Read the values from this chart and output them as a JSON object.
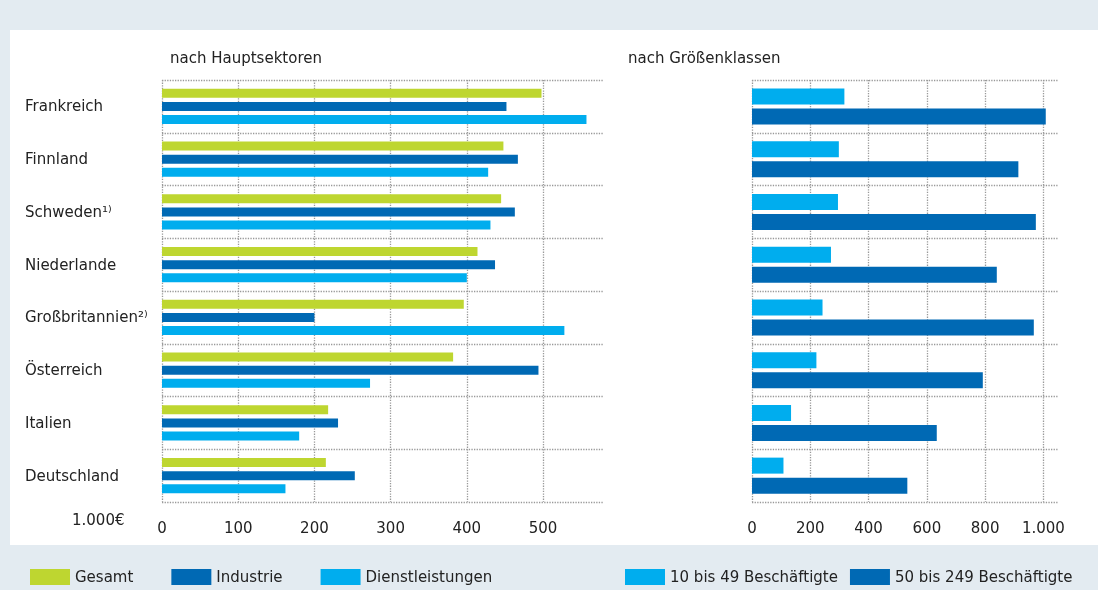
{
  "chart_data": [
    {
      "type": "bar",
      "orientation": "horizontal",
      "title": "nach Hauptsektoren",
      "categories": [
        "Frankreich",
        "Finnland",
        "Schweden¹⁾",
        "Niederlande",
        "Großbritannien²⁾",
        "Österreich",
        "Italien",
        "Deutschland"
      ],
      "series": [
        {
          "name": "Gesamt",
          "color": "#bed630",
          "values": [
            498,
            448,
            445,
            414,
            396,
            382,
            218,
            215
          ]
        },
        {
          "name": "Industrie",
          "color": "#0069b4",
          "values": [
            452,
            467,
            463,
            437,
            200,
            494,
            231,
            253
          ]
        },
        {
          "name": "Dienstleistungen",
          "color": "#00adee",
          "values": [
            557,
            428,
            431,
            400,
            528,
            273,
            180,
            162
          ]
        }
      ],
      "xlim": [
        0,
        580
      ],
      "xticks": [
        0,
        100,
        200,
        300,
        400,
        500
      ],
      "grid": true,
      "legend": "bottom left",
      "annotations": [
        "1.000€"
      ]
    },
    {
      "type": "bar",
      "orientation": "horizontal",
      "title": "nach Größenklassen",
      "categories": [
        null,
        null,
        null,
        null,
        null,
        null,
        null,
        null
      ],
      "series": [
        {
          "name": "10 bis 49 Beschäftigte",
          "color": "#00adee",
          "values": [
            317,
            298,
            295,
            271,
            242,
            221,
            134,
            108
          ]
        },
        {
          "name": "50 bis 249 Beschäftigte",
          "color": "#0069b4",
          "values": [
            1008,
            914,
            974,
            840,
            967,
            792,
            634,
            533
          ]
        }
      ],
      "xlim": [
        0,
        1050
      ],
      "xticks": [
        0,
        200,
        400,
        600,
        800,
        {
          "value": 1000,
          "label": "1.000"
        }
      ],
      "grid": true,
      "legend": "bottom left"
    }
  ]
}
